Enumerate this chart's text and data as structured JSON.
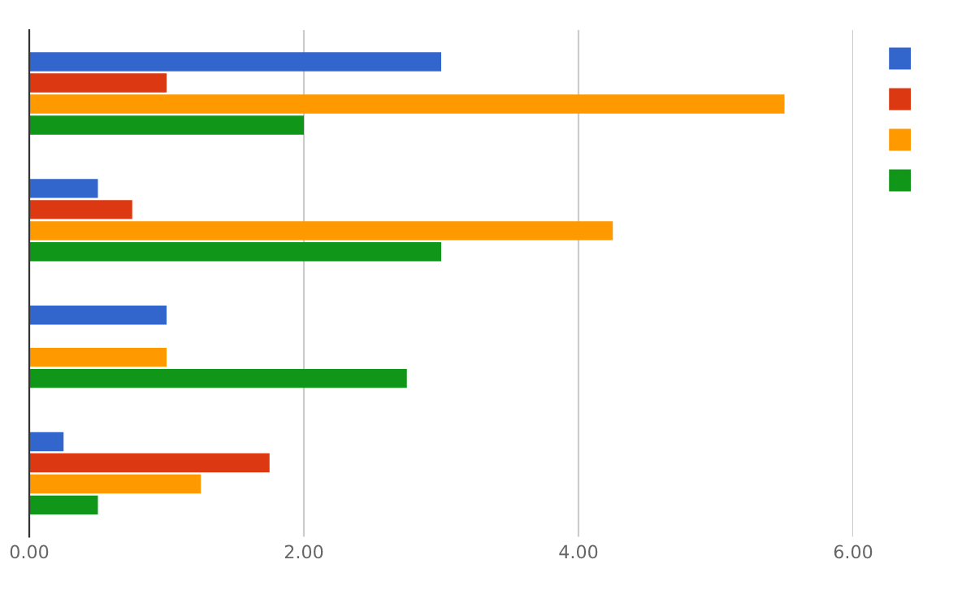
{
  "chart_data": {
    "type": "bar",
    "orientation": "horizontal",
    "categories": [
      null,
      null,
      null,
      null
    ],
    "series": [
      {
        "color": "#3366cc",
        "values": [
          3.0,
          0.5,
          1.0,
          0.25
        ]
      },
      {
        "color": "#dc3912",
        "values": [
          1.0,
          0.75,
          null,
          1.75
        ]
      },
      {
        "color": "#ff9900",
        "values": [
          5.5,
          4.25,
          1.0,
          1.25
        ]
      },
      {
        "color": "#109618",
        "values": [
          2.0,
          3.0,
          2.75,
          0.5
        ]
      }
    ],
    "xlim": [
      0,
      6
    ],
    "xticks": [
      {
        "value": 0,
        "label": "0.00"
      },
      {
        "value": 2,
        "label": "2.00"
      },
      {
        "value": 4,
        "label": "4.00"
      },
      {
        "value": 6,
        "label": "6.00"
      }
    ],
    "grid": "x",
    "tick_labels": "x"
  }
}
